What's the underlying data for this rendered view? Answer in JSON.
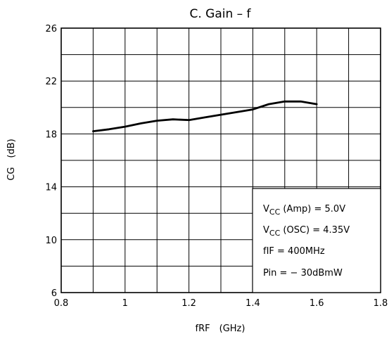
{
  "chart_data": {
    "type": "line",
    "title": "C. Gain – f",
    "xlabel": "fRF  (GHz)",
    "ylabel": "CG  (dB)",
    "xlim": [
      0.8,
      1.8
    ],
    "ylim": [
      6,
      26
    ],
    "x_ticks": [
      0.8,
      1.0,
      1.2,
      1.4,
      1.6,
      1.8
    ],
    "x_tick_labels": [
      "0.8",
      "1",
      "1.2",
      "1.4",
      "1.6",
      "1.8"
    ],
    "y_ticks": [
      6,
      10,
      14,
      18,
      22,
      26
    ],
    "y_tick_labels": [
      "6",
      "10",
      "14",
      "18",
      "22",
      "26"
    ],
    "grid": true,
    "series": [
      {
        "x": [
          0.9,
          0.95,
          1.0,
          1.05,
          1.1,
          1.15,
          1.2,
          1.25,
          1.3,
          1.35,
          1.4,
          1.45,
          1.5,
          1.55,
          1.6
        ],
        "y": [
          18.2,
          18.35,
          18.55,
          18.8,
          19.0,
          19.1,
          19.05,
          19.25,
          19.45,
          19.65,
          19.85,
          20.25,
          20.45,
          20.45,
          20.25
        ],
        "color": "#000000"
      }
    ],
    "annotations": [
      {
        "main": "V",
        "sub": "CC",
        "rest": " (Amp) = 5.0V"
      },
      {
        "main": "V",
        "sub": "CC",
        "rest": " (OSC) = 4.35V"
      },
      {
        "main": "fIF = 400MHz",
        "sub": "",
        "rest": ""
      },
      {
        "main": "Pin = − 30dBmW",
        "sub": "",
        "rest": ""
      }
    ],
    "annotation_position": "bottom-right"
  }
}
